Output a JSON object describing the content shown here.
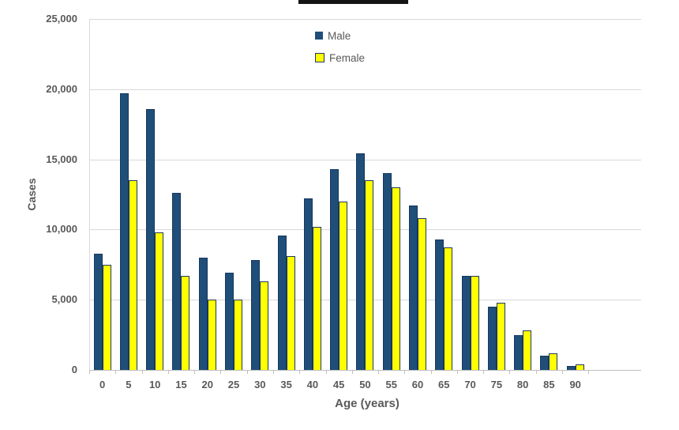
{
  "chart_data": {
    "type": "bar",
    "title": "",
    "title_redacted": true,
    "categories": [
      "0",
      "5",
      "10",
      "15",
      "20",
      "25",
      "30",
      "35",
      "40",
      "45",
      "50",
      "55",
      "60",
      "65",
      "70",
      "75",
      "80",
      "85",
      "90"
    ],
    "series": [
      {
        "name": "Male",
        "color": "#1F4E79",
        "border_color": "#17375E",
        "values": [
          8300,
          19700,
          18600,
          12600,
          8000,
          6900,
          7800,
          9600,
          12200,
          14300,
          15400,
          14000,
          11700,
          9300,
          6700,
          4500,
          2500,
          1000,
          300
        ]
      },
      {
        "name": "Female",
        "color": "#FFFF00",
        "border_color": "#1F3864",
        "values": [
          7500,
          13500,
          9800,
          6700,
          5000,
          5000,
          6300,
          8100,
          10200,
          12000,
          13500,
          13000,
          10800,
          8700,
          6700,
          4800,
          2800,
          1200,
          400
        ]
      }
    ],
    "xlabel": "Age (years)",
    "ylabel": "Cases",
    "ylim": [
      0,
      25000
    ],
    "ytick_step": 5000,
    "ytick_labels": [
      "0",
      "5,000",
      "10,000",
      "15,000",
      "20,000",
      "25,000"
    ],
    "grid": true,
    "legend_position": "top-center"
  },
  "colors": {
    "gridline": "#d9d9d9",
    "axis_line": "#bfbfbf",
    "text": "#595959",
    "redaction_bar": "#141414"
  }
}
